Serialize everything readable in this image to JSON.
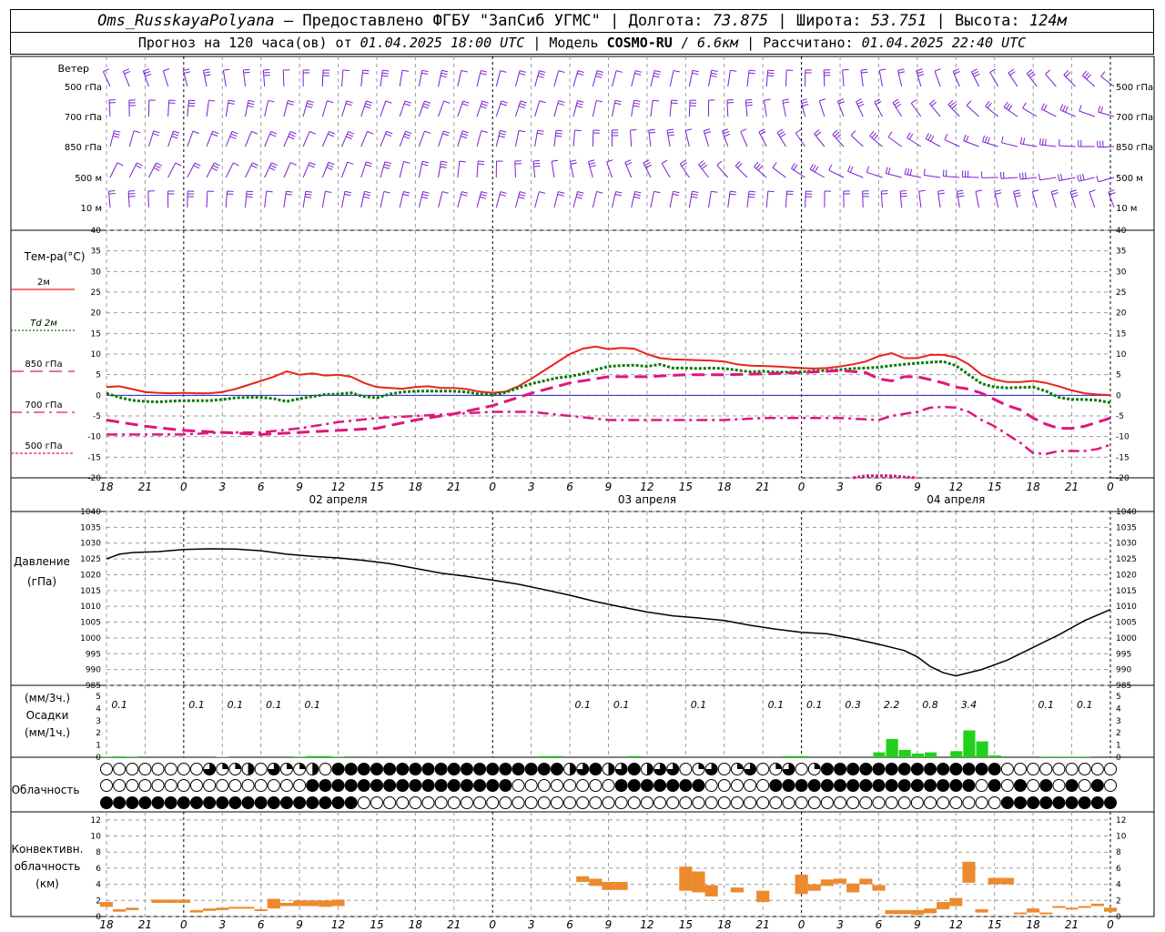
{
  "header": {
    "station": "Oms_RusskayaPolyana",
    "provider": "Предоставлено ФГБУ \"ЗапСиб УГМС\"",
    "lon_label": "Долгота:",
    "lon": "73.875",
    "lat_label": "Широта:",
    "lat": "53.751",
    "alt_label": "Высота:",
    "alt": "124м",
    "forecast_label": "Прогноз на 120 часа(ов) от",
    "forecast_start": "01.04.2025 18:00 UTC",
    "model_label": "Модель",
    "model": "COSMO-RU",
    "resolution": "6.6км",
    "calc_label": "Рассчитано:",
    "calc_time": "01.04.2025 22:40 UTC"
  },
  "colors": {
    "wind": "#7b1fd1",
    "t2m": "#e8231c",
    "td2m": "#0a7a0a",
    "t850": "#e0157e",
    "t700": "#e0157e",
    "t500": "#e0157e",
    "pressure": "#000000",
    "precip": "#21d11c",
    "convective": "#ec8a2e",
    "zero_line": "#2222cc",
    "grid": "#9a9a9a"
  },
  "chart_data": [
    {
      "type": "wind_barbs",
      "panel": "wind",
      "title": "Ветер",
      "levels": [
        "500 гПа",
        "700 гПа",
        "850 гПа",
        "500 м",
        "10 м"
      ]
    },
    {
      "type": "line",
      "panel": "temperature",
      "title": "Тем-ра(°C)",
      "ylim": [
        -20,
        40
      ],
      "yticks": [
        -20,
        -15,
        -10,
        -5,
        0,
        5,
        10,
        15,
        20,
        25,
        30,
        35,
        40
      ],
      "x_unit": "hours from 01.04.2025 18:00 UTC",
      "x_ticks": [
        {
          "h": 0,
          "label": "18"
        },
        {
          "h": 3,
          "label": "21"
        },
        {
          "h": 6,
          "label": "0"
        },
        {
          "h": 9,
          "label": "3"
        },
        {
          "h": 12,
          "label": "6"
        },
        {
          "h": 15,
          "label": "9"
        },
        {
          "h": 18,
          "label": "12"
        },
        {
          "h": 21,
          "label": "15"
        },
        {
          "h": 24,
          "label": "18"
        },
        {
          "h": 27,
          "label": "21"
        },
        {
          "h": 30,
          "label": "0"
        },
        {
          "h": 33,
          "label": "3"
        },
        {
          "h": 36,
          "label": "6"
        },
        {
          "h": 39,
          "label": "9"
        },
        {
          "h": 42,
          "label": "12"
        },
        {
          "h": 45,
          "label": "15"
        },
        {
          "h": 48,
          "label": "18"
        },
        {
          "h": 51,
          "label": "21"
        },
        {
          "h": 54,
          "label": "0"
        },
        {
          "h": 57,
          "label": "3"
        },
        {
          "h": 60,
          "label": "6"
        },
        {
          "h": 63,
          "label": "9"
        },
        {
          "h": 66,
          "label": "12"
        },
        {
          "h": 69,
          "label": "15"
        },
        {
          "h": 72,
          "label": "18"
        },
        {
          "h": 75,
          "label": "21"
        },
        {
          "h": 78,
          "label": "0"
        }
      ],
      "day_labels": [
        {
          "h": 18,
          "label": "02 апреля"
        },
        {
          "h": 42,
          "label": "03 апреля"
        },
        {
          "h": 66,
          "label": "04 апреля"
        }
      ],
      "series": [
        {
          "name": "2м",
          "style": "solid",
          "x": [
            0,
            1,
            2,
            3,
            4,
            5,
            6,
            7,
            8,
            9,
            10,
            11,
            12,
            13,
            14,
            15,
            16,
            17,
            18,
            19,
            20,
            21,
            22,
            23,
            24,
            25,
            26,
            27,
            28,
            29,
            30,
            31,
            32,
            33,
            34,
            35,
            36,
            37,
            38,
            39,
            40,
            41,
            42,
            43,
            44,
            45,
            46,
            47,
            48,
            49,
            50,
            51,
            52,
            53,
            54,
            55,
            56,
            57,
            58,
            59,
            60,
            61,
            62,
            63,
            64,
            65,
            66,
            67,
            68,
            69,
            70,
            71,
            72,
            73,
            74,
            75,
            76,
            77,
            78
          ],
          "values": [
            2,
            2.2,
            1.5,
            0.8,
            0.6,
            0.5,
            0.6,
            0.5,
            0.5,
            0.8,
            1.5,
            2.5,
            3.5,
            4.5,
            5.8,
            5.0,
            5.3,
            4.8,
            5.0,
            4.5,
            3.0,
            2.0,
            1.8,
            1.6,
            2.0,
            2.2,
            1.8,
            1.8,
            1.5,
            0.9,
            0.6,
            0.9,
            2.2,
            4.0,
            6.0,
            8.0,
            10.0,
            11.3,
            11.8,
            11.2,
            11.5,
            11.3,
            10.0,
            9.0,
            8.7,
            8.6,
            8.5,
            8.4,
            8.2,
            7.5,
            7.2,
            7.1,
            7.0,
            6.8,
            6.6,
            6.5,
            6.6,
            7.0,
            7.5,
            8.2,
            9.5,
            10.2,
            9.0,
            9.0,
            9.8,
            9.8,
            9.2,
            7.5,
            5.0,
            3.8,
            3.2,
            3.2,
            3.5,
            3.0,
            2.2,
            1.2,
            0.5,
            0.2,
            0.0
          ]
        },
        {
          "name": "Td  2м",
          "style": "dotted",
          "x": [
            0,
            1,
            2,
            3,
            4,
            5,
            6,
            7,
            8,
            9,
            10,
            11,
            12,
            13,
            14,
            15,
            16,
            17,
            18,
            19,
            20,
            21,
            22,
            23,
            24,
            25,
            26,
            27,
            28,
            29,
            30,
            31,
            32,
            33,
            34,
            35,
            36,
            37,
            38,
            39,
            40,
            41,
            42,
            43,
            44,
            45,
            46,
            47,
            48,
            49,
            50,
            51,
            52,
            53,
            54,
            55,
            56,
            57,
            58,
            59,
            60,
            61,
            62,
            63,
            64,
            65,
            66,
            67,
            68,
            69,
            70,
            71,
            72,
            73,
            74,
            75,
            76,
            77,
            78
          ],
          "values": [
            0.5,
            -0.5,
            -1.2,
            -1.5,
            -1.6,
            -1.4,
            -1.3,
            -1.3,
            -1.3,
            -1.0,
            -0.6,
            -0.5,
            -0.5,
            -0.8,
            -1.5,
            -0.8,
            -0.3,
            0.2,
            0.3,
            0.6,
            -0.3,
            -0.6,
            0.3,
            0.8,
            1.0,
            1.0,
            1.0,
            1.0,
            0.8,
            0.3,
            0.1,
            0.7,
            1.8,
            2.8,
            3.5,
            4.2,
            4.6,
            5.2,
            6.2,
            7.0,
            7.2,
            7.3,
            7.0,
            7.5,
            6.6,
            6.6,
            6.5,
            6.6,
            6.5,
            6.1,
            5.7,
            5.8,
            5.6,
            5.6,
            5.7,
            5.9,
            6.0,
            6.2,
            6.5,
            6.6,
            6.8,
            7.2,
            7.5,
            7.8,
            8.0,
            8.2,
            7.2,
            5.0,
            2.8,
            2.0,
            1.8,
            1.9,
            2.0,
            1.0,
            -0.5,
            -1.0,
            -1.0,
            -1.2,
            -1.8
          ]
        },
        {
          "name": "850 гПа",
          "style": "dashed",
          "x": [
            0,
            3,
            6,
            9,
            12,
            15,
            18,
            21,
            24,
            27,
            30,
            33,
            36,
            39,
            42,
            45,
            48,
            51,
            54,
            57,
            59,
            60,
            61,
            62,
            63,
            64,
            65,
            66,
            67,
            68,
            69,
            70,
            71,
            72,
            73,
            74,
            75,
            76,
            77,
            78
          ],
          "values": [
            -6.0,
            -7.5,
            -8.5,
            -9.0,
            -9.5,
            -9.0,
            -8.5,
            -8.0,
            -6.0,
            -4.5,
            -2.5,
            0.5,
            3.0,
            4.5,
            4.5,
            5.0,
            5.0,
            5.2,
            5.5,
            6.0,
            5.5,
            4.0,
            3.5,
            4.5,
            4.5,
            3.8,
            3.0,
            2.0,
            1.5,
            0.5,
            -1.0,
            -2.5,
            -3.5,
            -5.5,
            -7.0,
            -8.0,
            -8.0,
            -7.5,
            -6.5,
            -5.5
          ]
        },
        {
          "name": "700 гПа",
          "style": "dashdot",
          "x": [
            0,
            3,
            6,
            9,
            12,
            15,
            18,
            21,
            24,
            27,
            30,
            33,
            36,
            39,
            42,
            45,
            48,
            51,
            54,
            57,
            60,
            61,
            62,
            63,
            64,
            65,
            66,
            67,
            68,
            69,
            70,
            71,
            72,
            73,
            74,
            75,
            76,
            77,
            78
          ],
          "values": [
            -9.5,
            -9.5,
            -9.5,
            -9.0,
            -9.0,
            -8.0,
            -6.5,
            -5.5,
            -5.0,
            -4.5,
            -4.0,
            -4.0,
            -5.0,
            -6.0,
            -6.0,
            -6.0,
            -6.0,
            -5.5,
            -5.5,
            -5.5,
            -6.0,
            -5.0,
            -4.5,
            -4.0,
            -3.0,
            -2.8,
            -3.0,
            -4.0,
            -6.0,
            -7.5,
            -9.5,
            -11.5,
            -14.0,
            -14.2,
            -13.5,
            -13.5,
            -13.5,
            -13.0,
            -12.0
          ]
        },
        {
          "name": "500 гПа",
          "style": "shortdash",
          "x": [
            58,
            59,
            60,
            61,
            62,
            63
          ],
          "values": [
            -20.0,
            -19.5,
            -19.5,
            -19.5,
            -19.8,
            -20.0
          ]
        }
      ]
    },
    {
      "type": "line",
      "panel": "pressure",
      "title": "Давление",
      "ylabel": "(гПа)",
      "ylim": [
        985,
        1040
      ],
      "yticks": [
        985,
        990,
        995,
        1000,
        1005,
        1010,
        1015,
        1020,
        1025,
        1030,
        1035,
        1040
      ],
      "x": [
        0,
        1,
        2,
        4,
        6,
        8,
        10,
        12,
        14,
        16,
        18,
        20,
        22,
        24,
        26,
        28,
        30,
        32,
        34,
        36,
        38,
        40,
        42,
        44,
        46,
        48,
        50,
        52,
        54,
        56,
        58,
        60,
        61,
        62,
        63,
        64,
        65,
        66,
        68,
        70,
        72,
        74,
        76,
        78
      ],
      "values": [
        1025,
        1026.5,
        1027,
        1027.3,
        1028,
        1028.2,
        1028.1,
        1027.6,
        1026.5,
        1025.8,
        1025.3,
        1024.5,
        1023.5,
        1022,
        1020.5,
        1019.5,
        1018.3,
        1017,
        1015.3,
        1013.5,
        1011.5,
        1009.8,
        1008.2,
        1007,
        1006.3,
        1005.5,
        1004,
        1002.8,
        1001.8,
        1001.3,
        999.8,
        998,
        997,
        996,
        994,
        991,
        989,
        988,
        990,
        993,
        997,
        1001,
        1005.5,
        1009
      ]
    },
    {
      "type": "bar",
      "panel": "precipitation",
      "title": "Осадки",
      "ylabel_top": "(мм/3ч.)",
      "ylabel_bottom": "(мм/1ч.)",
      "ylim": [
        0,
        5
      ],
      "yticks": [
        0,
        1,
        2,
        3,
        4,
        5
      ],
      "hourly_bars": {
        "x": [
          60,
          61,
          62,
          63,
          64,
          66,
          67,
          68,
          69
        ],
        "values": [
          0.4,
          1.5,
          0.6,
          0.3,
          0.4,
          0.5,
          2.2,
          1.3,
          0.15
        ]
      },
      "traces": {
        "x": [
          0,
          1,
          2,
          9,
          15,
          16,
          17,
          18,
          34,
          35,
          41,
          53,
          54,
          73,
          74,
          75,
          76
        ],
        "values": [
          0.05,
          0.07,
          0.05,
          0.04,
          0.05,
          0.1,
          0.1,
          0.05,
          0.1,
          0.1,
          0.1,
          0.1,
          0.1,
          0.05,
          0.05,
          0.05,
          0.05
        ]
      },
      "sums_3h": [
        {
          "h": 1,
          "label": "0.1"
        },
        {
          "h": 7,
          "label": "0.1"
        },
        {
          "h": 10,
          "label": "0.1"
        },
        {
          "h": 13,
          "label": "0.1"
        },
        {
          "h": 16,
          "label": "0.1"
        },
        {
          "h": 37,
          "label": "0.1"
        },
        {
          "h": 40,
          "label": "0.1"
        },
        {
          "h": 46,
          "label": "0.1"
        },
        {
          "h": 52,
          "label": "0.1"
        },
        {
          "h": 55,
          "label": "0.1"
        },
        {
          "h": 58,
          "label": "0.3"
        },
        {
          "h": 61,
          "label": "2.2"
        },
        {
          "h": 64,
          "label": "0.8"
        },
        {
          "h": 67,
          "label": "3.4"
        },
        {
          "h": 73,
          "label": "0.1"
        },
        {
          "h": 76,
          "label": "0.1"
        }
      ]
    },
    {
      "type": "table",
      "panel": "cloudiness",
      "title": "Облачность",
      "rows": [
        "upper",
        "middle",
        "lower"
      ]
    },
    {
      "type": "bar",
      "panel": "convective",
      "title": "Конвективн.",
      "title2": "облачность",
      "ylabel": "(км)",
      "ylim": [
        0,
        13
      ],
      "yticks": [
        0,
        2,
        4,
        6,
        8,
        10,
        12
      ],
      "x": [
        0,
        1,
        2,
        4,
        5,
        6,
        7,
        8,
        9,
        10,
        11,
        12,
        13,
        14,
        15,
        16,
        17,
        18,
        37,
        38,
        39,
        40,
        45,
        46,
        47,
        49,
        51,
        54,
        55,
        56,
        57,
        58,
        59,
        60,
        61,
        62,
        63,
        64,
        65,
        66,
        67,
        68,
        69,
        70,
        71,
        72,
        73,
        74,
        75,
        76,
        77,
        78
      ],
      "base": [
        1.2,
        0.6,
        0.8,
        1.7,
        1.7,
        1.7,
        0.5,
        0.7,
        0.8,
        1.0,
        1.0,
        0.8,
        1.0,
        1.3,
        1.3,
        1.3,
        1.2,
        1.3,
        4.3,
        3.8,
        3.3,
        3.3,
        3.2,
        3.0,
        2.5,
        3.0,
        1.8,
        2.8,
        3.2,
        3.8,
        4.1,
        3.0,
        4.0,
        3.2,
        0.3,
        0.3,
        0.2,
        0.4,
        0.9,
        1.3,
        4.2,
        0.5,
        4.0,
        4.0,
        0.3,
        0.5,
        0.3,
        1.1,
        1.0,
        1.1,
        1.3,
        0.6
      ],
      "top": [
        1.8,
        0.9,
        1.1,
        2.1,
        2.1,
        2.1,
        0.8,
        1.0,
        1.1,
        1.2,
        1.2,
        0.9,
        2.2,
        1.7,
        2.0,
        2.0,
        2.0,
        2.1,
        5.0,
        4.7,
        4.3,
        4.3,
        6.2,
        5.6,
        3.9,
        3.6,
        3.2,
        5.2,
        4.0,
        4.6,
        4.7,
        4.1,
        4.7,
        3.9,
        0.8,
        0.8,
        0.8,
        1.0,
        1.8,
        2.3,
        6.8,
        0.9,
        4.8,
        4.8,
        0.5,
        1.0,
        0.5,
        1.3,
        1.1,
        1.3,
        1.6,
        1.1
      ]
    }
  ]
}
